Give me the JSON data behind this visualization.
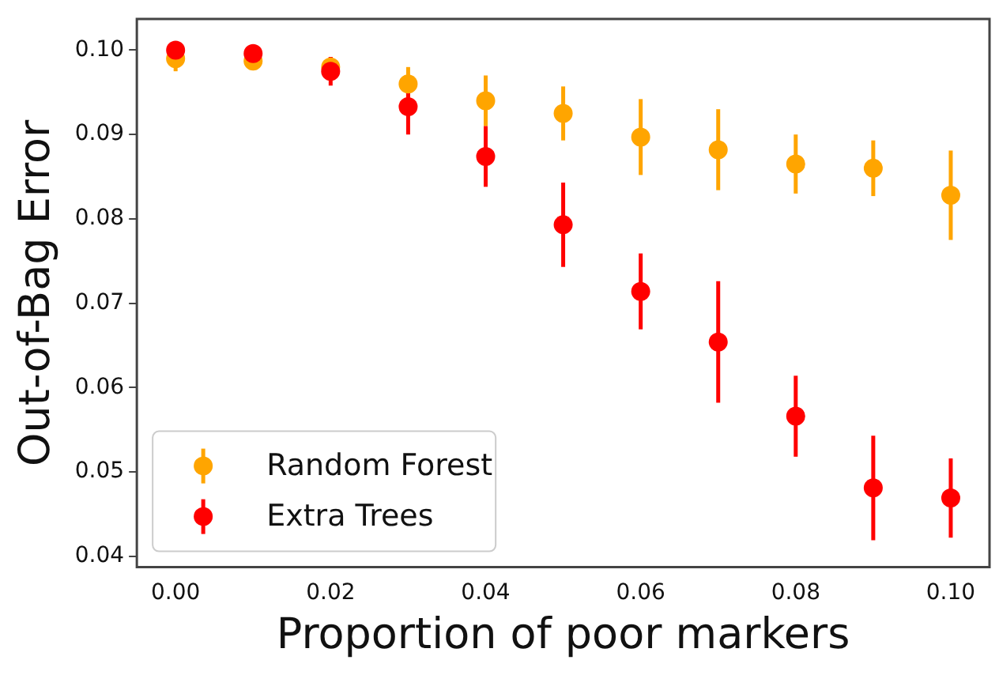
{
  "chart_data": {
    "type": "scatter",
    "xlabel": "Proportion of poor markers",
    "ylabel": "Out-of-Bag Error",
    "x": [
      0,
      0.01,
      0.02,
      0.03,
      0.04,
      0.05,
      0.06,
      0.07,
      0.08,
      0.09,
      0.1
    ],
    "series": [
      {
        "name": "Random Forest",
        "color": "#ffa500",
        "values": [
          0.099,
          0.0987,
          0.098,
          0.096,
          0.094,
          0.0925,
          0.0897,
          0.0882,
          0.0865,
          0.086,
          0.0828
        ],
        "errors": [
          0.0015,
          0.001,
          0.0012,
          0.002,
          0.003,
          0.0032,
          0.0045,
          0.0048,
          0.0035,
          0.0033,
          0.0053
        ]
      },
      {
        "name": "Extra Trees",
        "color": "#ff0000",
        "values": [
          0.1,
          0.0996,
          0.0975,
          0.0933,
          0.0874,
          0.0793,
          0.0714,
          0.0654,
          0.0566,
          0.0481,
          0.0469
        ],
        "errors": [
          0.0005,
          0.0005,
          0.0017,
          0.0033,
          0.0036,
          0.005,
          0.0045,
          0.0072,
          0.0048,
          0.0062,
          0.0047
        ]
      }
    ],
    "xlim": [
      -0.005,
      0.105
    ],
    "xticks": [
      {
        "value": 0,
        "label": "0.00"
      },
      {
        "value": 0.02,
        "label": "0.02"
      },
      {
        "value": 0.04,
        "label": "0.04"
      },
      {
        "value": 0.06,
        "label": "0.06"
      },
      {
        "value": 0.08,
        "label": "0.08"
      },
      {
        "value": 0.1,
        "label": "0.10"
      }
    ],
    "ylim": [
      0.0387,
      0.1037
    ],
    "yticks": [
      {
        "value": 0.04,
        "label": "0.04"
      },
      {
        "value": 0.05,
        "label": "0.05"
      },
      {
        "value": 0.06,
        "label": "0.06"
      },
      {
        "value": 0.07,
        "label": "0.07"
      },
      {
        "value": 0.08,
        "label": "0.08"
      },
      {
        "value": 0.09,
        "label": "0.09"
      },
      {
        "value": 0.1,
        "label": "0.10"
      }
    ],
    "grid": false,
    "legend": "bottom left",
    "marker": "circle"
  }
}
